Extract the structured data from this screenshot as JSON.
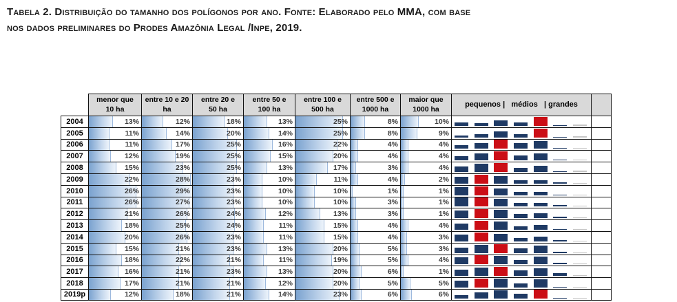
{
  "title": {
    "line1": "Tabela 2. Distribuição do tamanho dos polígonos por ano. Fonte: Elaborado pelo MMA, com base",
    "line2": "nos dados preliminares do Prodes Amazônia Legal /Inpe, 2019."
  },
  "table": {
    "col_headers": [
      [
        "menor que",
        "10 ha"
      ],
      [
        "entre 10 e 20",
        "ha"
      ],
      [
        "entre 20 e",
        "50 ha"
      ],
      [
        "entre 50 e",
        "100 ha"
      ],
      [
        "entre 100 e",
        "500 ha"
      ],
      [
        "entre 500 e",
        "1000 ha"
      ],
      [
        "maior que",
        "1000 ha"
      ]
    ],
    "spark_header": "pequenos |   médios   | grandes",
    "value_suffix": "%",
    "rows": [
      {
        "year": "2004",
        "values": [
          13,
          12,
          18,
          13,
          25,
          8,
          10
        ]
      },
      {
        "year": "2005",
        "values": [
          11,
          14,
          20,
          14,
          25,
          8,
          9
        ]
      },
      {
        "year": "2006",
        "values": [
          11,
          17,
          25,
          16,
          22,
          4,
          4
        ]
      },
      {
        "year": "2007",
        "values": [
          12,
          19,
          25,
          15,
          20,
          4,
          4
        ]
      },
      {
        "year": "2008",
        "values": [
          15,
          23,
          25,
          13,
          17,
          3,
          4
        ]
      },
      {
        "year": "2009",
        "values": [
          22,
          28,
          23,
          10,
          11,
          4,
          2
        ]
      },
      {
        "year": "2010",
        "values": [
          26,
          29,
          23,
          10,
          10,
          1,
          1
        ]
      },
      {
        "year": "2011",
        "values": [
          26,
          27,
          23,
          10,
          10,
          3,
          1
        ]
      },
      {
        "year": "2012",
        "values": [
          21,
          26,
          24,
          12,
          13,
          3,
          1
        ]
      },
      {
        "year": "2013",
        "values": [
          18,
          25,
          24,
          11,
          15,
          4,
          4
        ]
      },
      {
        "year": "2014",
        "values": [
          20,
          26,
          23,
          11,
          15,
          4,
          3
        ]
      },
      {
        "year": "2015",
        "values": [
          15,
          21,
          23,
          13,
          20,
          5,
          3
        ]
      },
      {
        "year": "2016",
        "values": [
          18,
          22,
          21,
          11,
          19,
          5,
          4
        ]
      },
      {
        "year": "2017",
        "values": [
          16,
          21,
          23,
          13,
          20,
          6,
          1
        ]
      },
      {
        "year": "2018",
        "values": [
          17,
          21,
          21,
          12,
          20,
          5,
          5
        ]
      },
      {
        "year": "2019p",
        "values": [
          12,
          18,
          21,
          14,
          23,
          6,
          6
        ]
      }
    ],
    "databar_scale_max": 29
  },
  "colors": {
    "header_bg": "#d9d9d9",
    "navy": "#1f3a64",
    "red": "#cb0e16",
    "last_point_gray": "#c6c6c6",
    "databar_blue": "#7aa2cf"
  }
}
